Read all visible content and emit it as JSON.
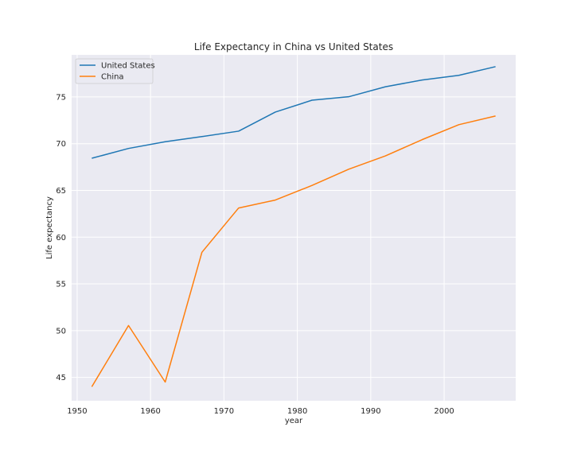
{
  "chart_data": {
    "type": "line",
    "title": "Life Expectancy in China vs United States",
    "xlabel": "year",
    "ylabel": "Life expectancy",
    "xlim": [
      1949.25,
      2009.75
    ],
    "ylim": [
      42.5,
      79.5
    ],
    "xticks": [
      1950,
      1960,
      1970,
      1980,
      1990,
      2000
    ],
    "yticks": [
      45,
      50,
      55,
      60,
      65,
      70,
      75
    ],
    "grid": true,
    "legend_position": "top-left",
    "x": [
      1952,
      1957,
      1962,
      1967,
      1972,
      1977,
      1982,
      1987,
      1992,
      1997,
      2002,
      2007
    ],
    "series": [
      {
        "name": "United States",
        "color": "#1f77b4",
        "values": [
          68.44,
          69.49,
          70.21,
          70.76,
          71.34,
          73.38,
          74.65,
          75.02,
          76.09,
          76.81,
          77.31,
          78.24
        ]
      },
      {
        "name": "China",
        "color": "#ff7f0e",
        "values": [
          44.0,
          50.55,
          44.5,
          58.38,
          63.12,
          63.97,
          65.53,
          67.27,
          68.69,
          70.43,
          72.03,
          72.96
        ]
      }
    ]
  }
}
